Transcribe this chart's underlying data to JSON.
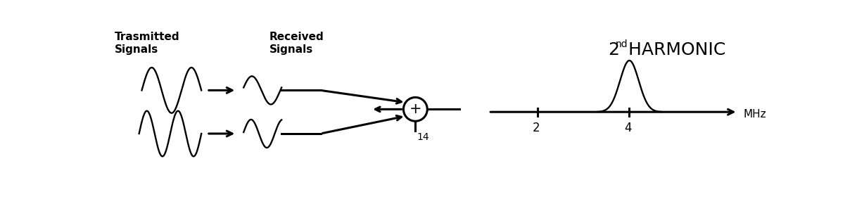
{
  "bg_color": "#ffffff",
  "label_transmitted": "Trasmitted\nSignals",
  "label_received": "Received\nSignals",
  "label_14": "14",
  "label_mhz": "MHz",
  "label_2": "2",
  "label_4": "4",
  "fig_width": 12.18,
  "fig_height": 3.0,
  "dpi": 100,
  "title_2": "2",
  "title_nd": "nd",
  "title_harmonic": " HARMONIC"
}
